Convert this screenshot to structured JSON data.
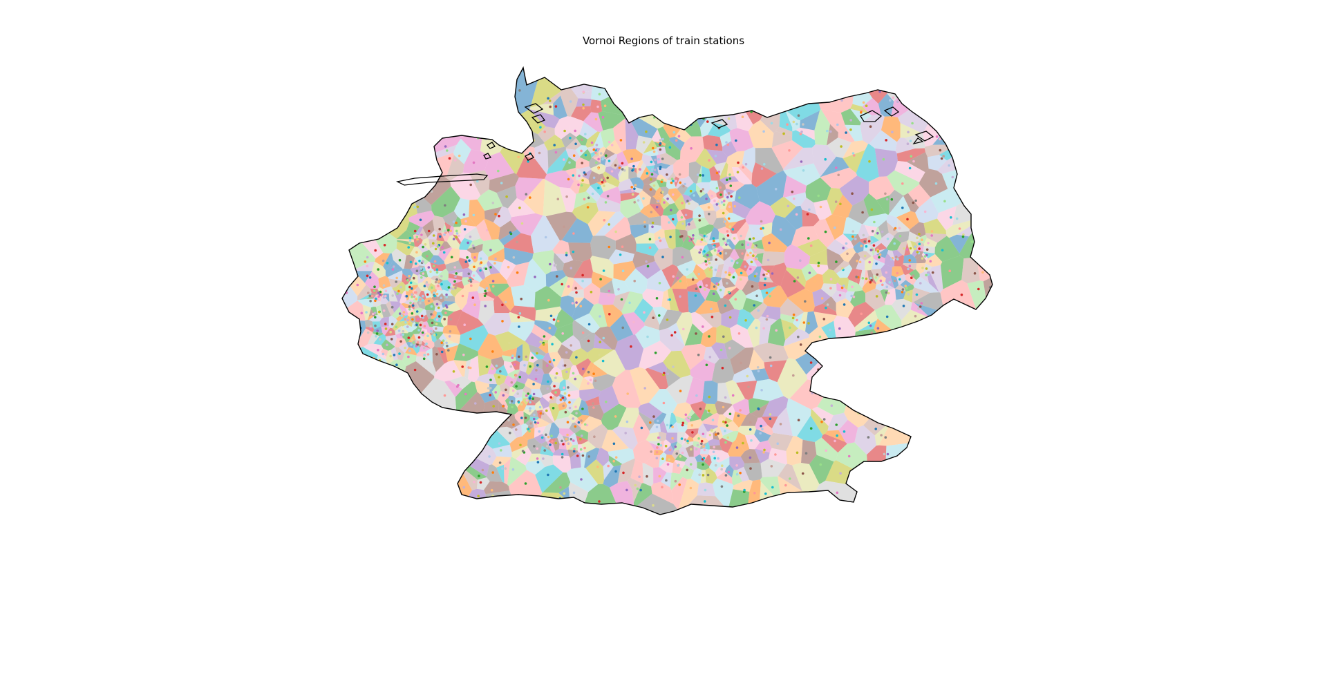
{
  "title": "Vornoi Regions of train stations",
  "map": {
    "subject": "Germany",
    "cell_type": "voronoi-regions",
    "point_type": "train-stations",
    "boundary_color": "#000000",
    "palette": [
      "#1f77b4",
      "#aec7e8",
      "#ff7f0e",
      "#ffbb78",
      "#2ca02c",
      "#98df8a",
      "#d62728",
      "#ff9896",
      "#9467bd",
      "#c5b0d5",
      "#8c564b",
      "#c49c94",
      "#e377c2",
      "#f7b6d2",
      "#7f7f7f",
      "#c7c7c7",
      "#bcbd22",
      "#dbdb8d",
      "#17becf",
      "#9edae5"
    ],
    "fill_opacity": 0.55
  }
}
